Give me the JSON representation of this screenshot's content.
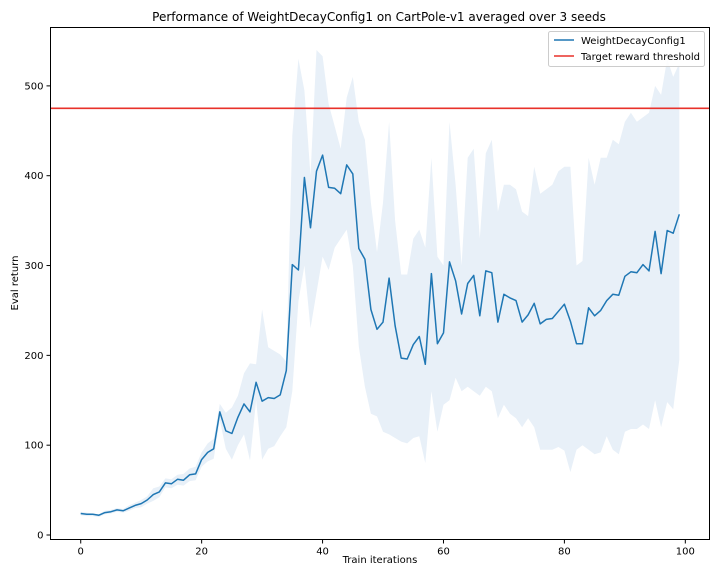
{
  "chart_data": {
    "type": "line",
    "title": "Performance of WeightDecayConfig1 on CartPole-v1 averaged over 3 seeds",
    "xlabel": "Train iterations",
    "ylabel": "Eval return",
    "xlim": [
      -5,
      104
    ],
    "ylim": [
      -5,
      565
    ],
    "x_ticks": [
      0,
      20,
      40,
      60,
      80,
      100
    ],
    "y_ticks": [
      0,
      100,
      200,
      300,
      400,
      500
    ],
    "grid": false,
    "legend_position": "top-right",
    "colors": {
      "mean": "#1f77b4",
      "band": "#e8f0f8",
      "threshold": "#e8312a"
    },
    "threshold": {
      "name": "Target reward threshold",
      "value": 475
    },
    "series": [
      {
        "name": "WeightDecayConfig1",
        "x": [
          0,
          1,
          2,
          3,
          4,
          5,
          6,
          7,
          8,
          9,
          10,
          11,
          12,
          13,
          14,
          15,
          16,
          17,
          18,
          19,
          20,
          21,
          22,
          23,
          24,
          25,
          26,
          27,
          28,
          29,
          30,
          31,
          32,
          33,
          34,
          35,
          36,
          37,
          38,
          39,
          40,
          41,
          42,
          43,
          44,
          45,
          46,
          47,
          48,
          49,
          50,
          51,
          52,
          53,
          54,
          55,
          56,
          57,
          58,
          59,
          60,
          61,
          62,
          63,
          64,
          65,
          66,
          67,
          68,
          69,
          70,
          71,
          72,
          73,
          74,
          75,
          76,
          77,
          78,
          79,
          80,
          81,
          82,
          83,
          84,
          85,
          86,
          87,
          88,
          89,
          90,
          91,
          92,
          93,
          94,
          95,
          96,
          97,
          98,
          99
        ],
        "mean": [
          24,
          23,
          23,
          22,
          25,
          26,
          28,
          27,
          30,
          33,
          35,
          39,
          45,
          48,
          58,
          57,
          62,
          61,
          67,
          68,
          84,
          92,
          96,
          137,
          116,
          113,
          131,
          146,
          137,
          170,
          149,
          153,
          152,
          156,
          183,
          301,
          295,
          398,
          342,
          405,
          423,
          387,
          386,
          380,
          412,
          402,
          319,
          307,
          251,
          229,
          237,
          286,
          233,
          197,
          196,
          212,
          221,
          190,
          291,
          213,
          225,
          304,
          283,
          246,
          280,
          289,
          244,
          294,
          292,
          237,
          268,
          264,
          261,
          237,
          245,
          258,
          235,
          240,
          241,
          249,
          257,
          238,
          213,
          213,
          253,
          244,
          250,
          261,
          268,
          267,
          288,
          293,
          292,
          301,
          294,
          338,
          291,
          339,
          336,
          357
        ],
        "upper": [
          26,
          25,
          24,
          23,
          27,
          28,
          30,
          29,
          33,
          36,
          39,
          43,
          52,
          54,
          63,
          62,
          67,
          68,
          74,
          76,
          92,
          102,
          107,
          146,
          136,
          142,
          155,
          180,
          191,
          190,
          251,
          209,
          205,
          201,
          193,
          445,
          530,
          495,
          400,
          540,
          533,
          480,
          455,
          430,
          487,
          510,
          460,
          440,
          370,
          315,
          370,
          460,
          350,
          290,
          290,
          330,
          340,
          320,
          420,
          310,
          300,
          460,
          390,
          300,
          420,
          430,
          330,
          425,
          440,
          360,
          390,
          390,
          385,
          360,
          355,
          410,
          380,
          385,
          390,
          405,
          410,
          410,
          300,
          305,
          420,
          390,
          420,
          420,
          440,
          435,
          460,
          470,
          460,
          465,
          470,
          500,
          490,
          530,
          510,
          525
        ],
        "lower": [
          22,
          21,
          21,
          20,
          23,
          24,
          26,
          25,
          27,
          30,
          31,
          35,
          38,
          42,
          53,
          52,
          56,
          55,
          60,
          61,
          76,
          82,
          85,
          128,
          96,
          84,
          100,
          112,
          83,
          150,
          84,
          96,
          99,
          110,
          120,
          160,
          260,
          300,
          230,
          270,
          310,
          295,
          320,
          330,
          340,
          300,
          210,
          165,
          135,
          132,
          115,
          112,
          108,
          104,
          102,
          108,
          110,
          80,
          160,
          115,
          145,
          150,
          175,
          160,
          165,
          160,
          155,
          165,
          160,
          130,
          145,
          135,
          130,
          120,
          130,
          120,
          95,
          95,
          95,
          98,
          94,
          70,
          95,
          100,
          95,
          90,
          92,
          110,
          95,
          90,
          115,
          118,
          118,
          123,
          118,
          150,
          120,
          148,
          140,
          195
        ]
      }
    ]
  }
}
